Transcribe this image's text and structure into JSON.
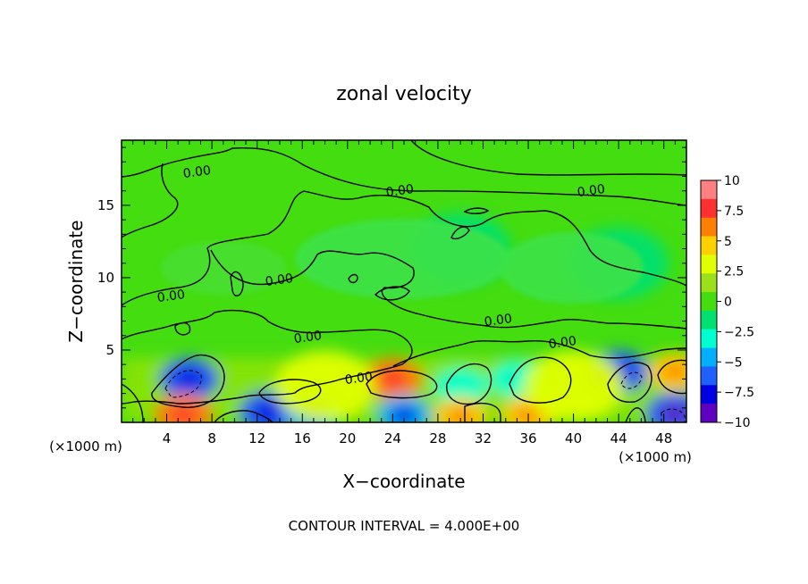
{
  "chart_data": {
    "type": "heatmap",
    "title": "zonal velocity",
    "xlabel": "X−coordinate",
    "ylabel": "Z−coordinate",
    "x_unit": "(×1000 m)",
    "y_unit": "(×1000 m)",
    "xlim": [
      0,
      50
    ],
    "ylim": [
      0,
      19.5
    ],
    "x_ticks": [
      "4",
      "8",
      "12",
      "16",
      "20",
      "24",
      "28",
      "32",
      "36",
      "40",
      "44",
      "48"
    ],
    "y_ticks": [
      "5",
      "10",
      "15"
    ],
    "footer": "CONTOUR INTERVAL = 4.000E+00",
    "contour_labels": [
      "0.00",
      "0.00",
      "0.00",
      "0.00",
      "0.00",
      "0.00",
      "0.00",
      "0.00",
      "0.00"
    ],
    "colorbar": {
      "ticks": [
        "10",
        "7.5",
        "5",
        "2.5",
        "0",
        "−2.5",
        "−5",
        "−7.5",
        "−10"
      ],
      "range": [
        -10,
        10
      ],
      "colors": [
        "#ff8080",
        "#ff3030",
        "#ff7f00",
        "#ffd000",
        "#e0ff00",
        "#9be01a",
        "#44dd10",
        "#00e070",
        "#00ffd0",
        "#00b0ff",
        "#2060ff",
        "#0000e0",
        "#6000c0"
      ]
    },
    "features": [
      {
        "x": 6,
        "z": 3.0,
        "value": -6,
        "type": "low"
      },
      {
        "x": 5.5,
        "z": 0.5,
        "value": 6,
        "type": "high"
      },
      {
        "x": 13,
        "z": 0.7,
        "value": -6,
        "type": "low"
      },
      {
        "x": 17,
        "z": 0.7,
        "value": -5,
        "type": "low"
      },
      {
        "x": 24,
        "z": 3.0,
        "value": 6,
        "type": "high"
      },
      {
        "x": 25,
        "z": 0.5,
        "value": -5,
        "type": "low"
      },
      {
        "x": 30,
        "z": 2.5,
        "value": -4,
        "type": "low"
      },
      {
        "x": 30,
        "z": 0.4,
        "value": 5,
        "type": "high"
      },
      {
        "x": 35,
        "z": 3.0,
        "value": -4,
        "type": "low"
      },
      {
        "x": 36,
        "z": 0.5,
        "value": 5,
        "type": "high"
      },
      {
        "x": 44,
        "z": 3.5,
        "value": -6,
        "type": "low"
      },
      {
        "x": 49,
        "z": 3.5,
        "value": 5,
        "type": "high"
      },
      {
        "x": 49,
        "z": 0.6,
        "value": -7,
        "type": "low"
      },
      {
        "x": 18,
        "z": 2.5,
        "value": 3,
        "type": "high"
      },
      {
        "x": 40,
        "z": 2.5,
        "value": 3,
        "type": "high"
      },
      {
        "x": 30,
        "z": 12,
        "value": -2,
        "type": "low"
      },
      {
        "x": 44,
        "z": 11,
        "value": -2,
        "type": "low"
      }
    ]
  }
}
